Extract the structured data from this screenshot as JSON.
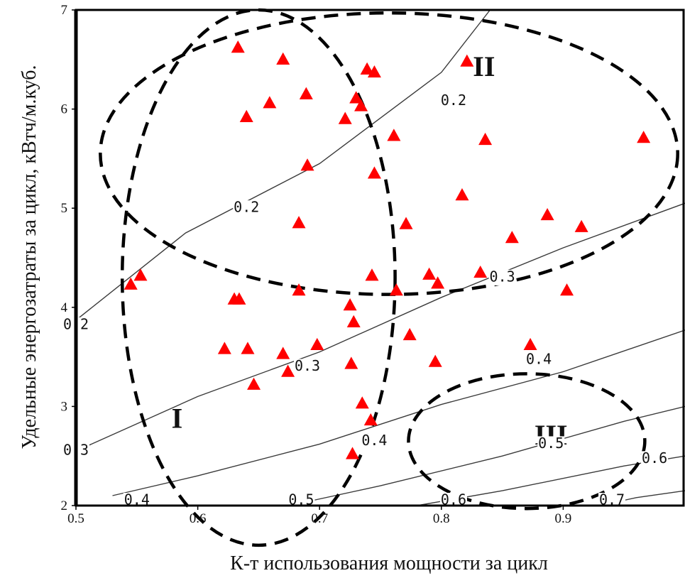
{
  "chart_data": {
    "type": "scatter",
    "xlabel": "К-т использования мощности за цикл",
    "ylabel": "Удельные энергозатраты за цикл, кВтч/м.куб.",
    "xlim": [
      0.5,
      1.0
    ],
    "ylim": [
      2,
      7
    ],
    "x_ticks": [
      "0.5",
      "0.6",
      "0.7",
      "0.8",
      "0.9"
    ],
    "y_ticks": [
      "2",
      "3",
      "4",
      "5",
      "6",
      "7"
    ],
    "marker_color": "#ff0000",
    "points": [
      {
        "x": 0.545,
        "y": 4.23
      },
      {
        "x": 0.553,
        "y": 4.32
      },
      {
        "x": 0.622,
        "y": 3.58
      },
      {
        "x": 0.63,
        "y": 4.08
      },
      {
        "x": 0.634,
        "y": 4.08
      },
      {
        "x": 0.633,
        "y": 6.62
      },
      {
        "x": 0.64,
        "y": 5.92
      },
      {
        "x": 0.641,
        "y": 3.58
      },
      {
        "x": 0.646,
        "y": 3.22
      },
      {
        "x": 0.659,
        "y": 6.06
      },
      {
        "x": 0.67,
        "y": 6.5
      },
      {
        "x": 0.67,
        "y": 3.53
      },
      {
        "x": 0.674,
        "y": 3.35
      },
      {
        "x": 0.683,
        "y": 4.85
      },
      {
        "x": 0.683,
        "y": 4.17
      },
      {
        "x": 0.689,
        "y": 6.15
      },
      {
        "x": 0.69,
        "y": 5.43
      },
      {
        "x": 0.698,
        "y": 3.62
      },
      {
        "x": 0.721,
        "y": 5.9
      },
      {
        "x": 0.725,
        "y": 4.02
      },
      {
        "x": 0.726,
        "y": 3.43
      },
      {
        "x": 0.727,
        "y": 2.52
      },
      {
        "x": 0.728,
        "y": 3.85
      },
      {
        "x": 0.73,
        "y": 6.11
      },
      {
        "x": 0.734,
        "y": 6.03
      },
      {
        "x": 0.735,
        "y": 3.03
      },
      {
        "x": 0.739,
        "y": 6.4
      },
      {
        "x": 0.742,
        "y": 2.86
      },
      {
        "x": 0.743,
        "y": 4.32
      },
      {
        "x": 0.745,
        "y": 6.37
      },
      {
        "x": 0.745,
        "y": 5.35
      },
      {
        "x": 0.761,
        "y": 5.73
      },
      {
        "x": 0.763,
        "y": 4.17
      },
      {
        "x": 0.771,
        "y": 4.84
      },
      {
        "x": 0.774,
        "y": 3.72
      },
      {
        "x": 0.79,
        "y": 4.33
      },
      {
        "x": 0.795,
        "y": 3.45
      },
      {
        "x": 0.797,
        "y": 4.24
      },
      {
        "x": 0.817,
        "y": 5.13
      },
      {
        "x": 0.821,
        "y": 6.48
      },
      {
        "x": 0.832,
        "y": 4.35
      },
      {
        "x": 0.836,
        "y": 5.69
      },
      {
        "x": 0.858,
        "y": 4.7
      },
      {
        "x": 0.873,
        "y": 3.62
      },
      {
        "x": 0.887,
        "y": 4.93
      },
      {
        "x": 0.903,
        "y": 4.17
      },
      {
        "x": 0.915,
        "y": 4.81
      },
      {
        "x": 0.966,
        "y": 5.71
      }
    ],
    "contours": [
      {
        "label": "0.2",
        "points": [
          [
            0.5,
            3.87
          ],
          [
            0.59,
            4.75
          ],
          [
            0.7,
            5.45
          ],
          [
            0.8,
            6.37
          ],
          [
            0.84,
            7.0
          ]
        ],
        "labels_at": [
          {
            "text": "0.2",
            "x": 0.64,
            "y": 5.0
          },
          {
            "text": "0.2",
            "x": 0.81,
            "y": 6.08
          },
          {
            "text": "0.2",
            "x": 0.5,
            "y": 3.82
          }
        ]
      },
      {
        "label": "0.3",
        "points": [
          [
            0.5,
            2.55
          ],
          [
            0.6,
            3.1
          ],
          [
            0.7,
            3.55
          ],
          [
            0.8,
            4.1
          ],
          [
            0.9,
            4.6
          ],
          [
            1.0,
            5.05
          ]
        ],
        "labels_at": [
          {
            "text": "0.3",
            "x": 0.69,
            "y": 3.4
          },
          {
            "text": "0.3",
            "x": 0.85,
            "y": 4.3
          },
          {
            "text": "0.3",
            "x": 0.5,
            "y": 2.55
          }
        ]
      },
      {
        "label": "0.4",
        "points": [
          [
            0.53,
            2.1
          ],
          [
            0.6,
            2.3
          ],
          [
            0.7,
            2.62
          ],
          [
            0.8,
            3.02
          ],
          [
            0.9,
            3.35
          ],
          [
            1.0,
            3.77
          ]
        ],
        "labels_at": [
          {
            "text": "0.4",
            "x": 0.745,
            "y": 2.65
          },
          {
            "text": "0.4",
            "x": 0.88,
            "y": 3.47
          },
          {
            "text": "0.4",
            "x": 0.55,
            "y": 2.05
          }
        ]
      },
      {
        "label": "0.5",
        "points": [
          [
            0.675,
            2.0
          ],
          [
            0.75,
            2.2
          ],
          [
            0.85,
            2.5
          ],
          [
            0.95,
            2.85
          ],
          [
            1.0,
            3.0
          ]
        ],
        "labels_at": [
          {
            "text": "0.5",
            "x": 0.685,
            "y": 2.05
          },
          {
            "text": "0.5",
            "x": 0.89,
            "y": 2.62
          }
        ]
      },
      {
        "label": "0.6",
        "points": [
          [
            0.78,
            2.0
          ],
          [
            0.85,
            2.15
          ],
          [
            0.95,
            2.4
          ],
          [
            1.0,
            2.5
          ]
        ],
        "labels_at": [
          {
            "text": "0.6",
            "x": 0.81,
            "y": 2.05
          },
          {
            "text": "0.6",
            "x": 0.975,
            "y": 2.47
          }
        ]
      },
      {
        "label": "0.7",
        "points": [
          [
            0.93,
            2.0
          ],
          [
            0.96,
            2.08
          ],
          [
            1.0,
            2.15
          ]
        ],
        "labels_at": [
          {
            "text": "0.7",
            "x": 0.94,
            "y": 2.05
          }
        ]
      }
    ],
    "regions": [
      {
        "label": "I",
        "cx": 0.65,
        "cy": 4.3,
        "rx": 0.112,
        "ry": 2.7,
        "label_x": 0.583,
        "label_y": 2.85
      },
      {
        "label": "II",
        "cx": 0.757,
        "cy": 5.55,
        "rx": 0.237,
        "ry": 1.42,
        "label_x": 0.835,
        "label_y": 6.4
      },
      {
        "label": "III",
        "cx": 0.87,
        "cy": 2.65,
        "rx": 0.097,
        "ry": 0.68,
        "label_x": 0.89,
        "label_y": 2.68
      }
    ]
  }
}
